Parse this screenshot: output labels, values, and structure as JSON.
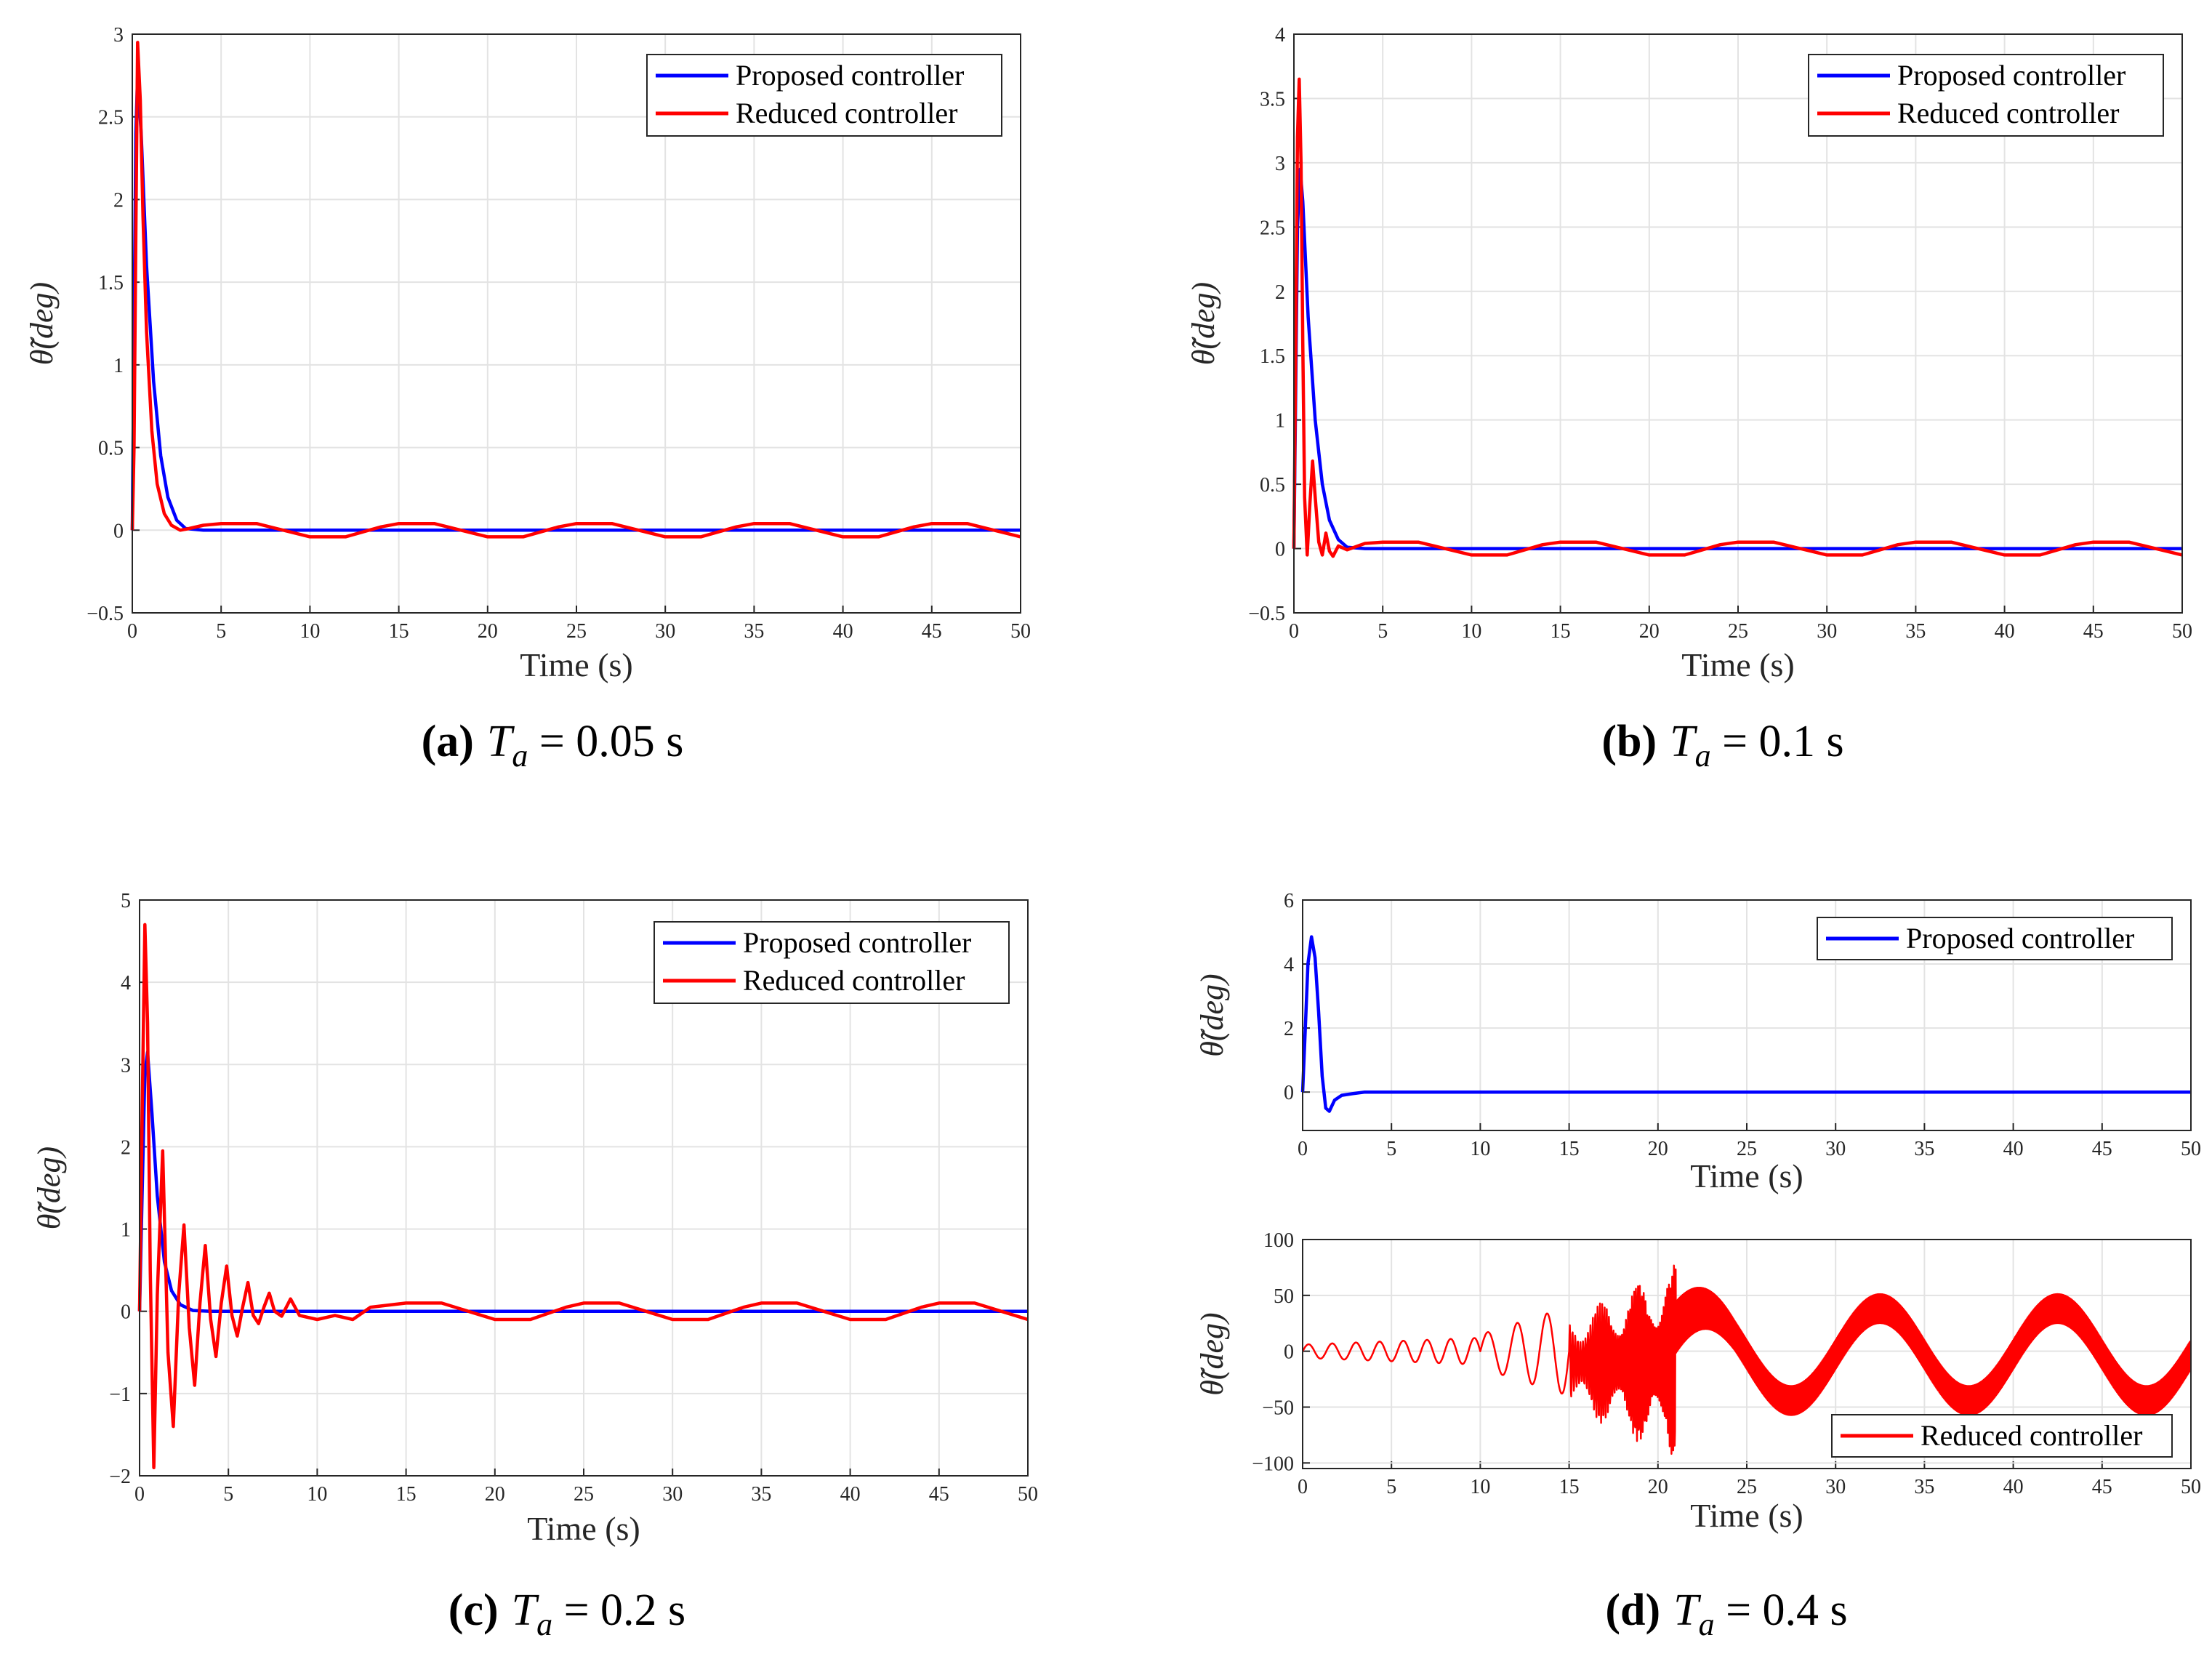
{
  "chart_data": [
    {
      "id": "a",
      "type": "line",
      "caption": {
        "letter": "(a)",
        "symbol": "T",
        "subscript": "a",
        "rest": " = 0.05 s"
      },
      "xlabel": "Time (s)",
      "ylabel": "θ̃(deg)",
      "xlim": [
        0,
        50
      ],
      "ylim": [
        -0.5,
        3
      ],
      "xticks": [
        "0",
        "5",
        "10",
        "15",
        "20",
        "25",
        "30",
        "35",
        "40",
        "45",
        "50"
      ],
      "yticks": [
        "−0.5",
        "0",
        "0.5",
        "1",
        "1.5",
        "2",
        "2.5",
        "3"
      ],
      "ytick_values": [
        -0.5,
        0,
        0.5,
        1,
        1.5,
        2,
        2.5,
        3
      ],
      "grid": true,
      "legend_position": "top-right",
      "series": [
        {
          "name": "Proposed controller",
          "color": "#0000ff",
          "x": [
            0,
            0.1,
            0.2,
            0.3,
            0.5,
            0.8,
            1.2,
            1.6,
            2.0,
            2.5,
            3.0,
            4,
            10,
            20,
            30,
            40,
            50
          ],
          "y": [
            0,
            1.2,
            2.4,
            2.75,
            2.4,
            1.6,
            0.9,
            0.45,
            0.2,
            0.06,
            0.01,
            0,
            0,
            0,
            0,
            0,
            0
          ]
        },
        {
          "name": "Reduced controller",
          "color": "#ff0000",
          "x": [
            0,
            0.1,
            0.2,
            0.3,
            0.45,
            0.6,
            0.8,
            1.1,
            1.4,
            1.8,
            2.2,
            2.7,
            3.2,
            4,
            5,
            7,
            8.5,
            10,
            12,
            14,
            15,
            17,
            18.5,
            20,
            22,
            24,
            25,
            27,
            28.5,
            30,
            32,
            34,
            35,
            37,
            38.5,
            40,
            42,
            44,
            45,
            47,
            48.5,
            50
          ],
          "y": [
            0,
            0.5,
            1.8,
            2.95,
            2.6,
            1.9,
            1.2,
            0.6,
            0.28,
            0.1,
            0.03,
            0.0,
            0.01,
            0.03,
            0.04,
            0.04,
            0,
            -0.04,
            -0.04,
            0.02,
            0.04,
            0.04,
            0,
            -0.04,
            -0.04,
            0.02,
            0.04,
            0.04,
            0,
            -0.04,
            -0.04,
            0.02,
            0.04,
            0.04,
            0,
            -0.04,
            -0.04,
            0.02,
            0.04,
            0.04,
            0,
            -0.04
          ]
        }
      ]
    },
    {
      "id": "b",
      "type": "line",
      "caption": {
        "letter": "(b)",
        "symbol": "T",
        "subscript": "a",
        "rest": " = 0.1 s"
      },
      "xlabel": "Time (s)",
      "ylabel": "θ̃(deg)",
      "xlim": [
        0,
        50
      ],
      "ylim": [
        -0.5,
        4
      ],
      "xticks": [
        "0",
        "5",
        "10",
        "15",
        "20",
        "25",
        "30",
        "35",
        "40",
        "45",
        "50"
      ],
      "yticks": [
        "−0.5",
        "0",
        "0.5",
        "1",
        "1.5",
        "2",
        "2.5",
        "3",
        "3.5",
        "4"
      ],
      "ytick_values": [
        -0.5,
        0,
        0.5,
        1,
        1.5,
        2,
        2.5,
        3,
        3.5,
        4
      ],
      "grid": true,
      "legend_position": "top-right",
      "series": [
        {
          "name": "Proposed controller",
          "color": "#0000ff",
          "x": [
            0,
            0.1,
            0.2,
            0.35,
            0.5,
            0.8,
            1.2,
            1.6,
            2.0,
            2.5,
            3.0,
            4,
            10,
            20,
            30,
            40,
            50
          ],
          "y": [
            0,
            1.2,
            2.5,
            2.95,
            2.7,
            1.8,
            1.0,
            0.5,
            0.22,
            0.07,
            0.01,
            0,
            0,
            0,
            0,
            0,
            0
          ]
        },
        {
          "name": "Reduced controller",
          "color": "#ff0000",
          "x": [
            0,
            0.1,
            0.2,
            0.3,
            0.4,
            0.5,
            0.6,
            0.75,
            0.9,
            1.05,
            1.2,
            1.4,
            1.6,
            1.8,
            2.0,
            2.2,
            2.5,
            3,
            4,
            5,
            7,
            8.5,
            10,
            12,
            14,
            15,
            17,
            18.5,
            20,
            22,
            24,
            25,
            27,
            28.5,
            30,
            32,
            34,
            35,
            37,
            38.5,
            40,
            42,
            44,
            45,
            47,
            48.5,
            50
          ],
          "y": [
            0,
            1.5,
            3.2,
            3.65,
            3.0,
            1.6,
            0.4,
            -0.05,
            0.35,
            0.68,
            0.4,
            0.05,
            -0.05,
            0.12,
            -0.02,
            -0.06,
            0.02,
            -0.01,
            0.04,
            0.05,
            0.05,
            0,
            -0.05,
            -0.05,
            0.03,
            0.05,
            0.05,
            0,
            -0.05,
            -0.05,
            0.03,
            0.05,
            0.05,
            0,
            -0.05,
            -0.05,
            0.03,
            0.05,
            0.05,
            0,
            -0.05,
            -0.05,
            0.03,
            0.05,
            0.05,
            0,
            -0.05
          ]
        }
      ]
    },
    {
      "id": "c",
      "type": "line",
      "caption": {
        "letter": "(c)",
        "symbol": "T",
        "subscript": "a",
        "rest": " = 0.2 s"
      },
      "xlabel": "Time (s)",
      "ylabel": "θ̃(deg)",
      "xlim": [
        0,
        50
      ],
      "ylim": [
        -2,
        5
      ],
      "xticks": [
        "0",
        "5",
        "10",
        "15",
        "20",
        "25",
        "30",
        "35",
        "40",
        "45",
        "50"
      ],
      "yticks": [
        "−2",
        "−1",
        "0",
        "1",
        "2",
        "3",
        "4",
        "5"
      ],
      "ytick_values": [
        -2,
        -1,
        0,
        1,
        2,
        3,
        4,
        5
      ],
      "grid": true,
      "legend_position": "top-right",
      "series": [
        {
          "name": "Proposed controller",
          "color": "#0000ff",
          "x": [
            0,
            0.15,
            0.3,
            0.45,
            0.7,
            1.0,
            1.4,
            1.8,
            2.3,
            3.0,
            4,
            10,
            20,
            30,
            40,
            50
          ],
          "y": [
            0,
            1.5,
            2.9,
            3.15,
            2.4,
            1.4,
            0.6,
            0.25,
            0.08,
            0.01,
            0,
            0,
            0,
            0,
            0,
            0
          ]
        },
        {
          "name": "Reduced controller",
          "color": "#ff0000",
          "x": [
            0,
            0.15,
            0.3,
            0.45,
            0.6,
            0.8,
            1.0,
            1.3,
            1.6,
            1.9,
            2.2,
            2.5,
            2.8,
            3.1,
            3.4,
            3.7,
            4.0,
            4.3,
            4.6,
            4.9,
            5.2,
            5.5,
            5.8,
            6.1,
            6.4,
            6.7,
            7.0,
            7.3,
            7.6,
            8.0,
            8.5,
            9,
            10,
            11,
            12,
            13,
            15,
            17,
            18.5,
            20,
            22,
            24,
            25,
            27,
            28.5,
            30,
            32,
            34,
            35,
            37,
            38.5,
            40,
            42,
            44,
            45,
            47,
            48.5,
            50
          ],
          "y": [
            0,
            2.5,
            4.7,
            3.5,
            0.5,
            -1.9,
            0.2,
            1.95,
            -0.5,
            -1.4,
            0.2,
            1.05,
            -0.2,
            -0.9,
            0.1,
            0.8,
            -0.1,
            -0.55,
            0.1,
            0.55,
            -0.05,
            -0.3,
            0.05,
            0.35,
            -0.05,
            -0.15,
            0.05,
            0.22,
            0.0,
            -0.06,
            0.15,
            -0.05,
            -0.1,
            -0.05,
            -0.1,
            0.05,
            0.1,
            0.1,
            0,
            -0.1,
            -0.1,
            0.05,
            0.1,
            0.1,
            0,
            -0.1,
            -0.1,
            0.05,
            0.1,
            0.1,
            0,
            -0.1,
            -0.1,
            0.05,
            0.1,
            0.1,
            0,
            -0.1
          ]
        }
      ]
    },
    {
      "id": "d-top",
      "type": "line",
      "caption": {
        "letter": "(d)",
        "symbol": "T",
        "subscript": "a",
        "rest": " = 0.4 s"
      },
      "xlabel": "Time (s)",
      "ylabel": "θ̃(deg)",
      "xlim": [
        0,
        50
      ],
      "ylim": [
        -1.2,
        6
      ],
      "xticks": [
        "0",
        "5",
        "10",
        "15",
        "20",
        "25",
        "30",
        "35",
        "40",
        "45",
        "50"
      ],
      "yticks": [
        "0",
        "2",
        "4",
        "6"
      ],
      "ytick_values": [
        0,
        2,
        4,
        6
      ],
      "grid": true,
      "legend_position": "top-right",
      "series": [
        {
          "name": "Proposed controller",
          "color": "#0000ff",
          "x": [
            0,
            0.15,
            0.3,
            0.5,
            0.7,
            0.9,
            1.1,
            1.3,
            1.5,
            1.8,
            2.2,
            2.8,
            3.5,
            5,
            10,
            20,
            30,
            40,
            50
          ],
          "y": [
            0,
            2.0,
            4.0,
            4.85,
            4.2,
            2.5,
            0.5,
            -0.5,
            -0.6,
            -0.25,
            -0.1,
            -0.05,
            0,
            0,
            0,
            0,
            0,
            0,
            0
          ]
        }
      ]
    },
    {
      "id": "d-bottom",
      "type": "line",
      "xlabel": "Time (s)",
      "ylabel": "θ̃(deg)",
      "xlim": [
        0,
        50
      ],
      "ylim": [
        -105,
        100
      ],
      "xticks": [
        "0",
        "5",
        "10",
        "15",
        "20",
        "25",
        "30",
        "35",
        "40",
        "45",
        "50"
      ],
      "yticks": [
        "−100",
        "−50",
        "0",
        "50",
        "100"
      ],
      "ytick_values": [
        -100,
        -50,
        0,
        50,
        100
      ],
      "grid": true,
      "legend_position": "bottom-right",
      "series": [
        {
          "name": "Reduced controller",
          "color": "#ff0000",
          "description": "growing oscillation until ~21 s, then a fast oscillation band bounded by a slow sinusoidal envelope (period ~10 s) between about -60 and +55"
        }
      ]
    }
  ]
}
